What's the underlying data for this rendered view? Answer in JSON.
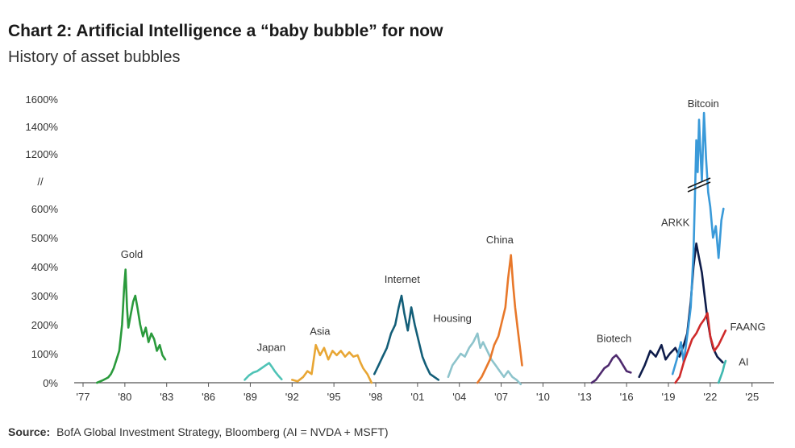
{
  "header": {
    "title": "Chart 2: Artificial Intelligence a “baby bubble” for now",
    "subtitle": "History of asset bubbles"
  },
  "footer": {
    "source_label": "Source:",
    "source_text": "BofA Global Investment Strategy, Bloomberg (AI = NVDA + MSFT)"
  },
  "chart_data": {
    "type": "line",
    "title": "Chart 2: Artificial Intelligence a “baby bubble” for now",
    "subtitle": "History of asset bubbles",
    "xlabel": "",
    "ylabel": "",
    "x_ticks": [
      "'77",
      "'80",
      "'83",
      "'86",
      "'89",
      "'92",
      "'95",
      "'98",
      "'01",
      "'04",
      "'07",
      "'10",
      "'13",
      "'16",
      "'19",
      "'22",
      "'25"
    ],
    "y_ticks_lower": [
      "0%",
      "100%",
      "200%",
      "300%",
      "400%",
      "500%",
      "600%"
    ],
    "y_ticks_upper": [
      "1200%",
      "1400%",
      "1600%"
    ],
    "axis_break_symbol": "//",
    "ylim": [
      0,
      1600
    ],
    "xlim": [
      1977,
      2026
    ],
    "grid": false,
    "series": [
      {
        "name": "Gold",
        "color": "#2a9a3c",
        "label_year": 1980.5,
        "label_value": 430,
        "points": [
          [
            1978.0,
            0
          ],
          [
            1978.4,
            8
          ],
          [
            1978.8,
            18
          ],
          [
            1979.0,
            30
          ],
          [
            1979.2,
            50
          ],
          [
            1979.4,
            80
          ],
          [
            1979.6,
            110
          ],
          [
            1979.8,
            200
          ],
          [
            1979.95,
            330
          ],
          [
            1980.05,
            390
          ],
          [
            1980.15,
            260
          ],
          [
            1980.25,
            190
          ],
          [
            1980.4,
            230
          ],
          [
            1980.6,
            280
          ],
          [
            1980.75,
            300
          ],
          [
            1980.9,
            260
          ],
          [
            1981.1,
            200
          ],
          [
            1981.3,
            160
          ],
          [
            1981.5,
            190
          ],
          [
            1981.7,
            140
          ],
          [
            1981.9,
            170
          ],
          [
            1982.1,
            150
          ],
          [
            1982.3,
            110
          ],
          [
            1982.5,
            130
          ],
          [
            1982.7,
            95
          ],
          [
            1982.9,
            80
          ]
        ]
      },
      {
        "name": "Japan",
        "color": "#4fc3b6",
        "label_year": 1990.5,
        "label_value": 110,
        "points": [
          [
            1988.6,
            10
          ],
          [
            1988.9,
            25
          ],
          [
            1989.2,
            35
          ],
          [
            1989.5,
            40
          ],
          [
            1989.8,
            50
          ],
          [
            1990.1,
            60
          ],
          [
            1990.35,
            68
          ],
          [
            1990.55,
            55
          ],
          [
            1990.75,
            40
          ],
          [
            1991.0,
            25
          ],
          [
            1991.25,
            12
          ]
        ]
      },
      {
        "name": "Asia",
        "color": "#e8a634",
        "label_year": 1994.0,
        "label_value": 165,
        "points": [
          [
            1992.0,
            10
          ],
          [
            1992.4,
            5
          ],
          [
            1992.8,
            20
          ],
          [
            1993.1,
            40
          ],
          [
            1993.4,
            30
          ],
          [
            1993.7,
            130
          ],
          [
            1994.0,
            95
          ],
          [
            1994.3,
            120
          ],
          [
            1994.6,
            80
          ],
          [
            1994.9,
            110
          ],
          [
            1995.2,
            95
          ],
          [
            1995.5,
            110
          ],
          [
            1995.8,
            90
          ],
          [
            1996.1,
            105
          ],
          [
            1996.4,
            90
          ],
          [
            1996.7,
            95
          ],
          [
            1996.9,
            70
          ],
          [
            1997.1,
            50
          ],
          [
            1997.4,
            30
          ],
          [
            1997.7,
            0
          ]
        ]
      },
      {
        "name": "Internet",
        "color": "#135e78",
        "label_year": 1999.9,
        "label_value": 345,
        "points": [
          [
            1997.9,
            30
          ],
          [
            1998.2,
            60
          ],
          [
            1998.5,
            90
          ],
          [
            1998.8,
            120
          ],
          [
            1999.1,
            170
          ],
          [
            1999.4,
            200
          ],
          [
            1999.65,
            260
          ],
          [
            1999.85,
            300
          ],
          [
            2000.05,
            240
          ],
          [
            2000.3,
            180
          ],
          [
            2000.55,
            260
          ],
          [
            2000.8,
            200
          ],
          [
            2001.05,
            150
          ],
          [
            2001.35,
            90
          ],
          [
            2001.6,
            60
          ],
          [
            2001.9,
            30
          ],
          [
            2002.2,
            20
          ],
          [
            2002.5,
            10
          ]
        ]
      },
      {
        "name": "Housing",
        "color": "#8ec4cc",
        "label_year": 2003.5,
        "label_value": 210,
        "points": [
          [
            2003.2,
            20
          ],
          [
            2003.5,
            60
          ],
          [
            2003.8,
            80
          ],
          [
            2004.1,
            100
          ],
          [
            2004.4,
            90
          ],
          [
            2004.7,
            120
          ],
          [
            2005.0,
            140
          ],
          [
            2005.3,
            170
          ],
          [
            2005.5,
            120
          ],
          [
            2005.7,
            140
          ],
          [
            2006.0,
            110
          ],
          [
            2006.3,
            80
          ],
          [
            2006.6,
            60
          ],
          [
            2006.9,
            40
          ],
          [
            2007.2,
            20
          ],
          [
            2007.5,
            40
          ],
          [
            2007.8,
            20
          ],
          [
            2008.1,
            10
          ],
          [
            2008.4,
            -5
          ]
        ]
      },
      {
        "name": "China",
        "color": "#e8782a",
        "label_year": 2006.9,
        "label_value": 480,
        "points": [
          [
            2005.3,
            0
          ],
          [
            2005.6,
            20
          ],
          [
            2005.9,
            50
          ],
          [
            2006.2,
            80
          ],
          [
            2006.5,
            130
          ],
          [
            2006.8,
            160
          ],
          [
            2007.0,
            200
          ],
          [
            2007.3,
            260
          ],
          [
            2007.5,
            360
          ],
          [
            2007.7,
            440
          ],
          [
            2007.85,
            340
          ],
          [
            2008.0,
            260
          ],
          [
            2008.2,
            180
          ],
          [
            2008.4,
            100
          ],
          [
            2008.5,
            60
          ]
        ]
      },
      {
        "name": "Biotech",
        "color": "#4e2a6e",
        "label_year": 2015.1,
        "label_value": 140,
        "points": [
          [
            2013.5,
            0
          ],
          [
            2013.8,
            10
          ],
          [
            2014.1,
            30
          ],
          [
            2014.4,
            50
          ],
          [
            2014.7,
            60
          ],
          [
            2015.0,
            85
          ],
          [
            2015.25,
            95
          ],
          [
            2015.5,
            80
          ],
          [
            2015.75,
            60
          ],
          [
            2016.0,
            40
          ],
          [
            2016.3,
            35
          ]
        ]
      },
      {
        "name": "ARKK",
        "color": "#0e1c4a",
        "label_year": 2019.5,
        "label_value": 540,
        "points": [
          [
            2016.9,
            20
          ],
          [
            2017.3,
            60
          ],
          [
            2017.7,
            110
          ],
          [
            2018.1,
            90
          ],
          [
            2018.5,
            130
          ],
          [
            2018.8,
            80
          ],
          [
            2019.1,
            100
          ],
          [
            2019.5,
            120
          ],
          [
            2019.8,
            90
          ],
          [
            2020.1,
            130
          ],
          [
            2020.35,
            170
          ],
          [
            2020.6,
            280
          ],
          [
            2020.8,
            400
          ],
          [
            2021.0,
            480
          ],
          [
            2021.2,
            430
          ],
          [
            2021.4,
            380
          ],
          [
            2021.6,
            300
          ],
          [
            2021.8,
            220
          ],
          [
            2022.0,
            160
          ],
          [
            2022.2,
            120
          ],
          [
            2022.5,
            90
          ],
          [
            2022.9,
            70
          ]
        ]
      },
      {
        "name": "Bitcoin",
        "color": "#3a9ad9",
        "label_year": 2021.5,
        "label_value": 1540,
        "points": [
          [
            2019.3,
            30
          ],
          [
            2019.6,
            80
          ],
          [
            2019.9,
            140
          ],
          [
            2020.1,
            70
          ],
          [
            2020.4,
            180
          ],
          [
            2020.6,
            260
          ],
          [
            2020.8,
            450
          ],
          [
            2020.9,
            700
          ],
          [
            2021.0,
            1300
          ],
          [
            2021.1,
            1000
          ],
          [
            2021.2,
            1450
          ],
          [
            2021.3,
            1200
          ],
          [
            2021.4,
            900
          ],
          [
            2021.55,
            1500
          ],
          [
            2021.7,
            1150
          ],
          [
            2021.85,
            780
          ],
          [
            2022.0,
            620
          ],
          [
            2022.2,
            500
          ],
          [
            2022.4,
            540
          ],
          [
            2022.6,
            430
          ],
          [
            2022.8,
            560
          ],
          [
            2022.95,
            600
          ]
        ]
      },
      {
        "name": "FAANG",
        "color": "#cf2a2a",
        "label_year": 2024.7,
        "label_value": 180,
        "points": [
          [
            2019.5,
            0
          ],
          [
            2019.8,
            20
          ],
          [
            2020.1,
            70
          ],
          [
            2020.4,
            110
          ],
          [
            2020.7,
            150
          ],
          [
            2021.0,
            170
          ],
          [
            2021.3,
            200
          ],
          [
            2021.6,
            220
          ],
          [
            2021.8,
            240
          ],
          [
            2022.0,
            160
          ],
          [
            2022.3,
            110
          ],
          [
            2022.6,
            130
          ],
          [
            2022.9,
            160
          ],
          [
            2023.1,
            180
          ]
        ]
      },
      {
        "name": "AI",
        "color": "#3fb8b0",
        "label_year": 2024.4,
        "label_value": 60,
        "points": [
          [
            2022.6,
            0
          ],
          [
            2022.75,
            20
          ],
          [
            2022.9,
            40
          ],
          [
            2023.0,
            60
          ],
          [
            2023.1,
            75
          ]
        ]
      }
    ]
  }
}
